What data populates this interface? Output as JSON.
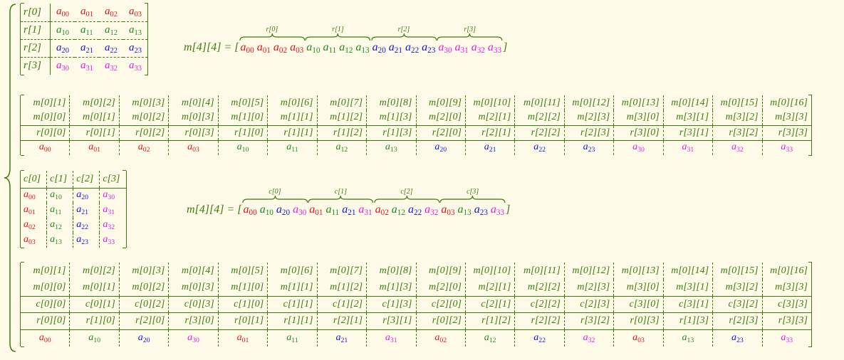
{
  "palette": [
    "#e3121b",
    "#1f8a1f",
    "#1414dc",
    "#e01ee0"
  ],
  "text_color": "#3d7a0e",
  "row_matrix": {
    "labels": [
      "r[0]",
      "r[1]",
      "r[2]",
      "r[3]"
    ],
    "rows": [
      [
        "a00",
        "a01",
        "a02",
        "a03"
      ],
      [
        "a10",
        "a11",
        "a12",
        "a13"
      ],
      [
        "a20",
        "a21",
        "a22",
        "a23"
      ],
      [
        "a30",
        "a31",
        "a32",
        "a33"
      ]
    ]
  },
  "row_equation": {
    "lhs": "m[4][4] =",
    "open": "[",
    "close": "]",
    "groups": [
      {
        "label": "r[0]",
        "items": [
          "a00",
          "a01",
          "a02",
          "a03"
        ]
      },
      {
        "label": "r[1]",
        "items": [
          "a10",
          "a11",
          "a12",
          "a13"
        ]
      },
      {
        "label": "r[2]",
        "items": [
          "a20",
          "a21",
          "a22",
          "a23"
        ]
      },
      {
        "label": "r[3]",
        "items": [
          "a30",
          "a31",
          "a32",
          "a33"
        ]
      }
    ]
  },
  "row_table": {
    "rows": [
      [
        "m[0][1]",
        "m[0][2]",
        "m[0][3]",
        "m[0][4]",
        "m[0][5]",
        "m[0][6]",
        "m[0][7]",
        "m[0][8]",
        "m[0][9]",
        "m[0][10]",
        "m[0][11]",
        "m[0][12]",
        "m[0][13]",
        "m[0][14]",
        "m[0][15]",
        "m[0][16]"
      ],
      [
        "m[0][0]",
        "m[0][1]",
        "m[0][2]",
        "m[0][3]",
        "m[1][0]",
        "m[1][1]",
        "m[1][2]",
        "m[1][3]",
        "m[2][0]",
        "m[2][1]",
        "m[2][2]",
        "m[2][3]",
        "m[3][0]",
        "m[3][1]",
        "m[3][2]",
        "m[3][3]"
      ],
      [
        "r[0][0]",
        "r[0][1]",
        "r[0][2]",
        "r[0][3]",
        "r[1][0]",
        "r[1][1]",
        "r[1][2]",
        "r[1][3]",
        "r[2][0]",
        "r[2][1]",
        "r[2][2]",
        "r[2][3]",
        "r[3][0]",
        "r[3][1]",
        "r[3][2]",
        "r[3][3]"
      ],
      [
        "a00",
        "a01",
        "a02",
        "a03",
        "a10",
        "a11",
        "a12",
        "a13",
        "a20",
        "a21",
        "a22",
        "a23",
        "a30",
        "a31",
        "a32",
        "a33"
      ]
    ]
  },
  "col_matrix": {
    "labels": [
      "c[0]",
      "c[1]",
      "c[2]",
      "c[3]"
    ],
    "columns": [
      [
        "a00",
        "a01",
        "a02",
        "a03"
      ],
      [
        "a10",
        "a11",
        "a12",
        "a13"
      ],
      [
        "a20",
        "a21",
        "a22",
        "a23"
      ],
      [
        "a30",
        "a31",
        "a32",
        "a33"
      ]
    ]
  },
  "col_equation": {
    "lhs": "m[4][4] =",
    "open": "[",
    "close": "]",
    "groups": [
      {
        "label": "c[0]",
        "items": [
          "a00",
          "a10",
          "a20",
          "a30"
        ]
      },
      {
        "label": "c[1]",
        "items": [
          "a01",
          "a11",
          "a21",
          "a31"
        ]
      },
      {
        "label": "c[2]",
        "items": [
          "a02",
          "a12",
          "a22",
          "a32"
        ]
      },
      {
        "label": "c[3]",
        "items": [
          "a03",
          "a13",
          "a23",
          "a33"
        ]
      }
    ]
  },
  "col_table": {
    "rows": [
      [
        "m[0][1]",
        "m[0][2]",
        "m[0][3]",
        "m[0][4]",
        "m[0][5]",
        "m[0][6]",
        "m[0][7]",
        "m[0][8]",
        "m[0][9]",
        "m[0][10]",
        "m[0][11]",
        "m[0][12]",
        "m[0][13]",
        "m[0][14]",
        "m[0][15]",
        "m[0][16]"
      ],
      [
        "m[0][0]",
        "m[0][1]",
        "m[0][2]",
        "m[0][3]",
        "m[1][0]",
        "m[1][1]",
        "m[1][2]",
        "m[1][3]",
        "m[2][0]",
        "m[2][1]",
        "m[2][2]",
        "m[2][3]",
        "m[3][0]",
        "m[3][1]",
        "m[3][2]",
        "m[3][3]"
      ],
      [
        "c[0][0]",
        "c[0][1]",
        "c[0][2]",
        "c[0][3]",
        "c[1][0]",
        "c[1][1]",
        "c[1][2]",
        "c[1][3]",
        "c[2][0]",
        "c[2][1]",
        "c[2][2]",
        "c[2][3]",
        "c[3][0]",
        "c[3][1]",
        "c[3][2]",
        "c[3][3]"
      ],
      [
        "r[0][0]",
        "r[1][0]",
        "r[2][0]",
        "r[3][0]",
        "r[0][1]",
        "r[1][1]",
        "r[2][1]",
        "r[3][1]",
        "r[0][2]",
        "r[1][2]",
        "r[2][2]",
        "r[3][2]",
        "r[0][3]",
        "r[1][3]",
        "r[2][3]",
        "r[3][3]"
      ],
      [
        "a00",
        "a10",
        "a20",
        "a30",
        "a01",
        "a11",
        "a21",
        "a31",
        "a02",
        "a12",
        "a22",
        "a32",
        "a03",
        "a13",
        "a23",
        "a33"
      ]
    ]
  }
}
